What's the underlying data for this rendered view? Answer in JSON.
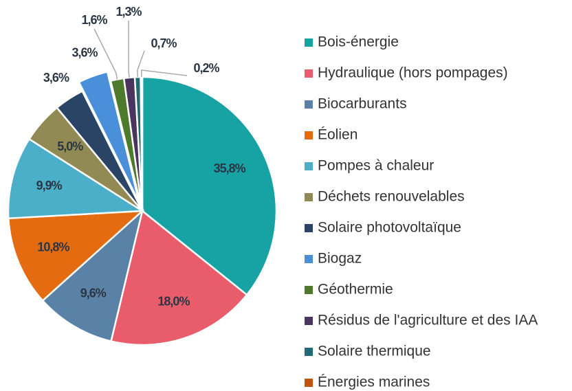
{
  "chart_data": {
    "type": "pie",
    "categories": [
      "Bois-énergie",
      "Hydraulique (hors pompages)",
      "Biocarburants",
      "Éolien",
      "Pompes à chaleur",
      "Déchets renouvelables",
      "Solaire photovoltaïque",
      "Biogaz",
      "Géothermie",
      "Résidus de l'agriculture et des IAA",
      "Solaire thermique",
      "Énergies marines"
    ],
    "values": [
      35.8,
      18.0,
      9.6,
      10.8,
      9.9,
      5.0,
      3.6,
      3.6,
      1.6,
      1.3,
      0.7,
      0.2
    ],
    "value_labels": [
      "35,8%",
      "18,0%",
      "9,6%",
      "10,8%",
      "9,9%",
      "5,0%",
      "3,6%",
      "3,6%",
      "1,6%",
      "1,3%",
      "0,7%",
      "0,2%"
    ],
    "colors": [
      "#17a2a3",
      "#e95c6c",
      "#5a82a6",
      "#e56b10",
      "#4bafc9",
      "#928a55",
      "#2a4466",
      "#4a8fd9",
      "#4d7a2b",
      "#4a3560",
      "#206a78",
      "#c0560e"
    ],
    "legend": "right"
  }
}
